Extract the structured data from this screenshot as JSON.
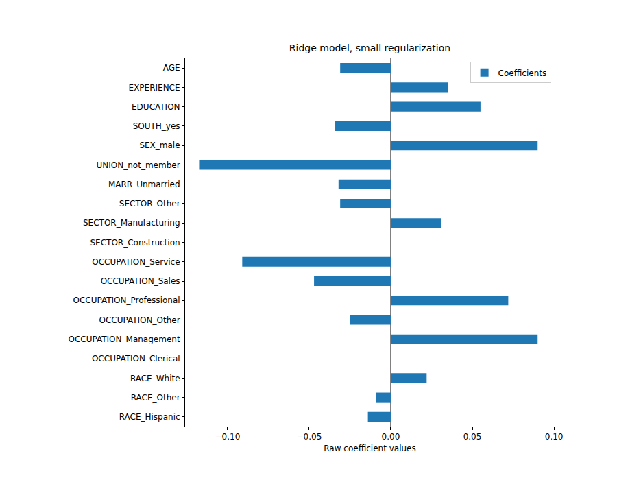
{
  "chart_data": {
    "type": "bar",
    "orientation": "horizontal",
    "title": "Ridge model, small regularization",
    "x_label": "Raw coefficient values",
    "categories": [
      "AGE",
      "EXPERIENCE",
      "EDUCATION",
      "SOUTH_yes",
      "SEX_male",
      "UNION_not_member",
      "MARR_Unmarried",
      "SECTOR_Other",
      "SECTOR_Manufacturing",
      "SECTOR_Construction",
      "OCCUPATION_Service",
      "OCCUPATION_Sales",
      "OCCUPATION_Professional",
      "OCCUPATION_Other",
      "OCCUPATION_Management",
      "OCCUPATION_Clerical",
      "RACE_White",
      "RACE_Other",
      "RACE_Hispanic"
    ],
    "series": [
      {
        "name": "Coefficients",
        "color": "#1f77b4",
        "values": [
          -0.031,
          0.035,
          0.055,
          -0.034,
          0.09,
          -0.117,
          -0.032,
          -0.031,
          0.031,
          0.0,
          -0.091,
          -0.047,
          0.072,
          -0.025,
          0.09,
          0.0,
          0.022,
          -0.009,
          -0.014
        ]
      }
    ],
    "xlim": [
      -0.126,
      0.1004
    ],
    "xticks": [
      {
        "value": -0.1,
        "label": "−0.10"
      },
      {
        "value": -0.05,
        "label": "−0.05"
      },
      {
        "value": 0,
        "label": "0.00"
      },
      {
        "value": 0.05,
        "label": "0.05"
      },
      {
        "value": 0.1,
        "label": "0.10"
      }
    ],
    "legend": "upper right",
    "grid": false
  }
}
